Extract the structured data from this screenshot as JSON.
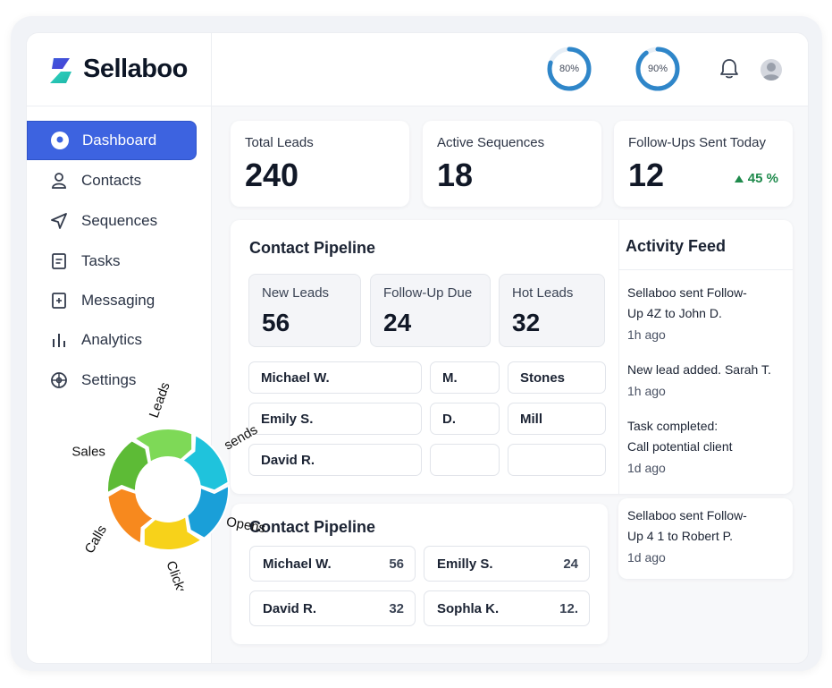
{
  "brand": {
    "name": "Sellaboo"
  },
  "nav": [
    {
      "label": "Dashboard",
      "icon": "dashboard-icon",
      "active": true
    },
    {
      "label": "Contacts",
      "icon": "user-icon"
    },
    {
      "label": "Sequences",
      "icon": "send-icon"
    },
    {
      "label": "Tasks",
      "icon": "tasks-icon"
    },
    {
      "label": "Messaging",
      "icon": "message-icon"
    },
    {
      "label": "Analytics",
      "icon": "analytics-icon"
    },
    {
      "label": "Settings",
      "icon": "settings-icon"
    }
  ],
  "topbar": {
    "gauges": [
      {
        "label": "80%",
        "value": 0.8
      },
      {
        "label": "90%",
        "value": 0.9
      }
    ],
    "accent": "#2f86c9"
  },
  "stats": [
    {
      "label": "Total Leads",
      "value": "240"
    },
    {
      "label": "Active Sequences",
      "value": "18"
    },
    {
      "label": "Follow-Ups Sent Today",
      "value": "12",
      "trend": "45 %",
      "trend_color": "#1f8a4c"
    }
  ],
  "pipeline": {
    "title": "Contact Pipeline",
    "stages": [
      {
        "label": "New Leads",
        "value": "56"
      },
      {
        "label": "Follow-Up Due",
        "value": "24"
      },
      {
        "label": "Hot Leads",
        "value": "32"
      }
    ],
    "rows": [
      [
        "Michael W.",
        "M.",
        "Stones"
      ],
      [
        "Emily S.",
        "D.",
        "Mill"
      ],
      [
        "David R.",
        "",
        ""
      ]
    ]
  },
  "pipeline2": {
    "title": "Contact Pipeline",
    "items": [
      {
        "name": "Michael W.",
        "value": "56"
      },
      {
        "name": "Emilly S.",
        "value": "24"
      },
      {
        "name": "David R.",
        "value": "32"
      },
      {
        "name": "Sophla K.",
        "value": "12."
      }
    ]
  },
  "feed": {
    "title": "Activity Feed",
    "items": [
      {
        "line1": "Sellaboo sent Follow-",
        "line2": "Up 4Z to John D.",
        "time": "1h ago"
      },
      {
        "line1": "New lead added. Sarah T.",
        "line2": "",
        "time": "1h ago"
      },
      {
        "line1": "Task completed:",
        "line2": "Call potential client",
        "time": "1d ago"
      },
      {
        "line1": "Sellaboo sent Follow-",
        "line2": "Up 4 1 to Robert P.",
        "time": "1d ago"
      }
    ]
  },
  "funnel": {
    "segments": [
      {
        "label": "Leads",
        "color": "#7ed957"
      },
      {
        "label": "sends",
        "color": "#1fc3dc"
      },
      {
        "label": "Opens",
        "color": "#1a9fd8"
      },
      {
        "label": "Clicks",
        "color": "#f7d21a"
      },
      {
        "label": "Calls",
        "color": "#f7891e"
      },
      {
        "label": "Sales",
        "color": "#5dbb36"
      }
    ]
  }
}
